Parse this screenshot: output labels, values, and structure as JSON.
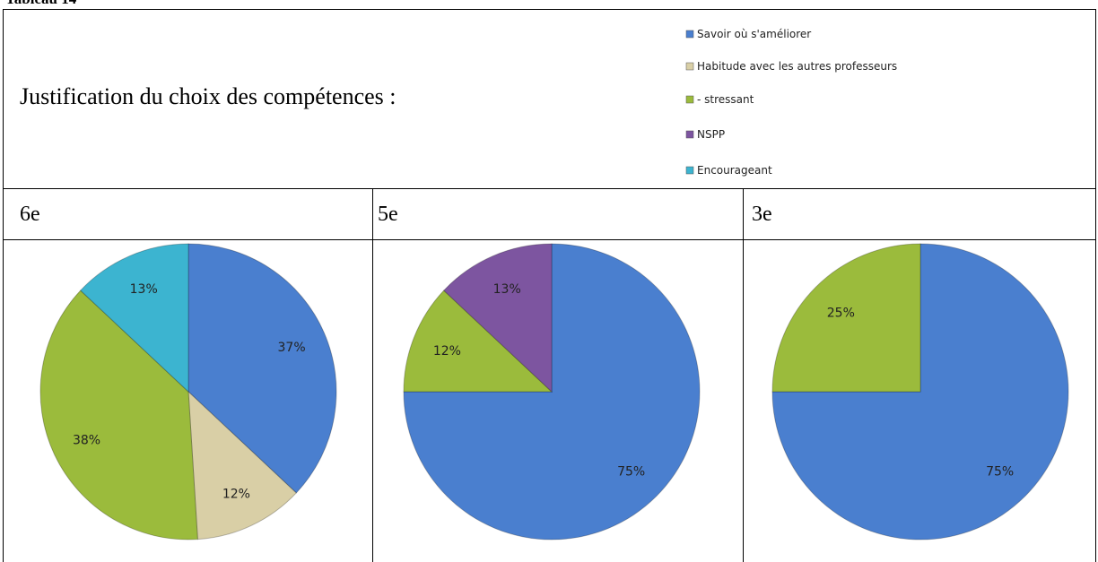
{
  "caption": "Tableau 14",
  "heading": "Justification du choix des compétences :",
  "legend": [
    {
      "name": "Savoir où s'améliorer",
      "color": "#4a7fcf"
    },
    {
      "name": "Habitude avec les autres professeurs",
      "color": "#d9cfa6"
    },
    {
      "name": "- stressant",
      "color": "#9bbb3c"
    },
    {
      "name": "NSPP",
      "color": "#7d55a0"
    },
    {
      "name": "Encourageant",
      "color": "#3cb4d0"
    }
  ],
  "chart_data": [
    {
      "type": "pie",
      "title": "6e",
      "categories": [
        "Savoir où s'améliorer",
        "Habitude avec les autres professeurs",
        "- stressant",
        "Encourageant"
      ],
      "values": [
        37,
        12,
        38,
        13
      ],
      "value_labels": [
        "37%",
        "12%",
        "38%",
        "13%"
      ]
    },
    {
      "type": "pie",
      "title": "5e",
      "categories": [
        "Savoir où s'améliorer",
        "- stressant",
        "NSPP"
      ],
      "values": [
        75,
        12,
        13
      ],
      "value_labels": [
        "75%",
        "12%",
        "13%"
      ]
    },
    {
      "type": "pie",
      "title": "3e",
      "categories": [
        "Savoir où s'améliorer",
        "- stressant"
      ],
      "values": [
        75,
        25
      ],
      "value_labels": [
        "75%",
        "25%"
      ]
    }
  ]
}
